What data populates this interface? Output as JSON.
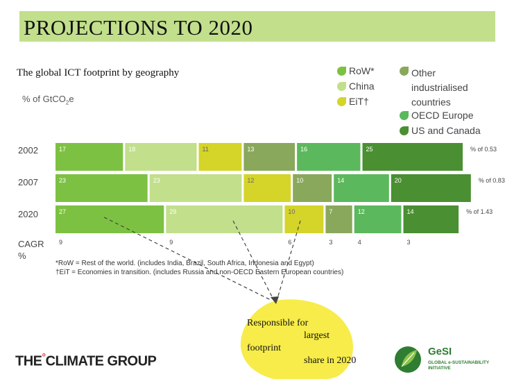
{
  "title": "PROJECTIONS TO 2020",
  "subtitle": "The global ICT footprint by geography",
  "legend": {
    "col1": [
      {
        "label": "RoW*",
        "color": "#7dc142"
      },
      {
        "label": "China",
        "color": "#c2df8c"
      },
      {
        "label": "EiT†",
        "color": "#d4d429"
      }
    ],
    "col2": [
      {
        "label": "Other industrialised countries",
        "color": "#8aa85c"
      },
      {
        "label": "OECD Europe",
        "color": "#5cb85c"
      },
      {
        "label": "US and Canada",
        "color": "#4a8f32"
      }
    ]
  },
  "chart_data": {
    "type": "bar",
    "orientation": "horizontal-stacked",
    "unit_label": "% of GtCO",
    "unit_sub": "2",
    "unit_suffix": "e",
    "categories": [
      "2002",
      "2007",
      "2020"
    ],
    "series": [
      {
        "name": "RoW*",
        "color": "#7dc142",
        "values": [
          17,
          23,
          27
        ]
      },
      {
        "name": "China",
        "color": "#c2df8c",
        "values": [
          18,
          23,
          29
        ]
      },
      {
        "name": "EiT†",
        "color": "#d4d429",
        "values": [
          11,
          12,
          10
        ]
      },
      {
        "name": "Other industrialised countries",
        "color": "#8aa85c",
        "values": [
          13,
          10,
          7
        ]
      },
      {
        "name": "OECD Europe",
        "color": "#5cb85c",
        "values": [
          16,
          14,
          12
        ]
      },
      {
        "name": "US and Canada",
        "color": "#4a8f32",
        "values": [
          25,
          20,
          14
        ]
      }
    ],
    "totals": [
      "% of 0.53",
      "% of 0.83",
      "% of 1.43"
    ],
    "cagr_label": "CAGR\n%",
    "cagr": [
      "9",
      "9",
      "6",
      "3",
      "4",
      "3"
    ]
  },
  "notes": [
    "*RoW = Rest of the world. (includes India, Brazil, South Africa, Indonesia and Egypt)",
    "†EiT = Economies in transition. (includes Russia and non-OECD Eastern European countries)"
  ],
  "callout": {
    "line1": "Responsible for",
    "line2": "largest",
    "line3": "footprint",
    "line4": "share in 2020",
    "color": "#f7ec4a"
  },
  "brand": {
    "left_pre": "THE",
    "left_degree": "°",
    "left_post": "CLIMATE GROUP",
    "gesi_name": "GeSI",
    "gesi_sub1": "GLOBAL e-SUSTAINABILITY",
    "gesi_sub2": "INITIATIVE"
  }
}
